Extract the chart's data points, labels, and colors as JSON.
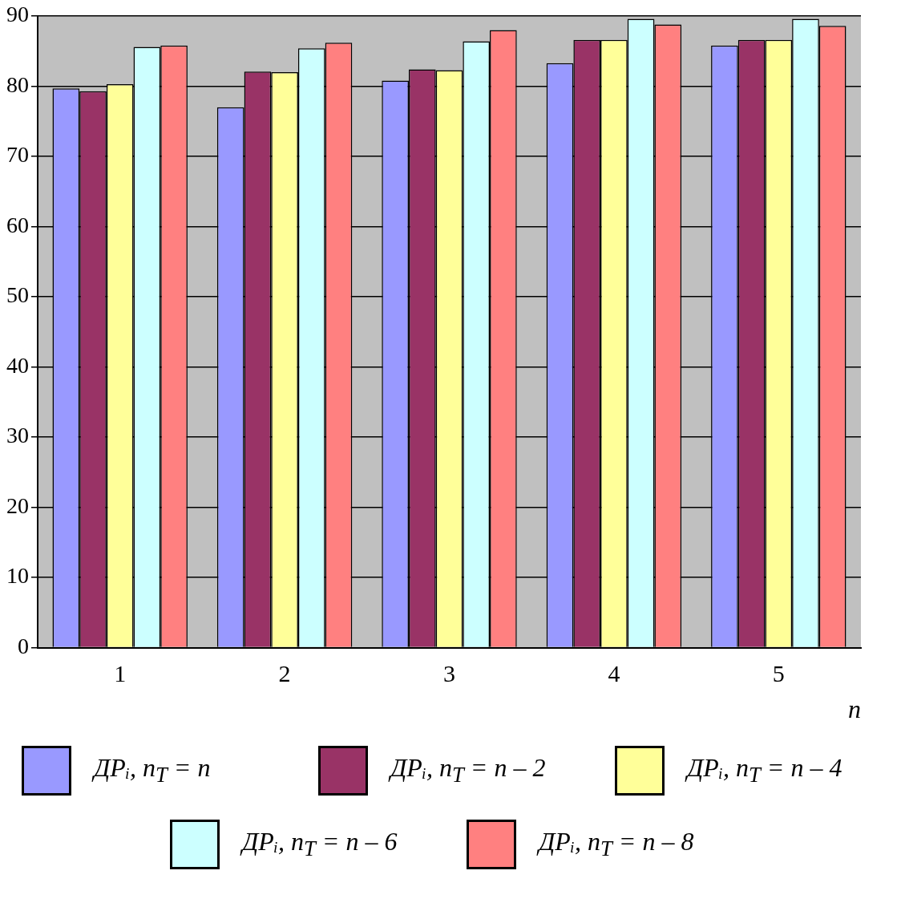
{
  "chart_data": {
    "type": "bar",
    "xlabel": "n",
    "categories": [
      "1",
      "2",
      "3",
      "4",
      "5"
    ],
    "series": [
      {
        "name": "ДPᵢ, n$_{T}$ = n",
        "color": "#9999ff",
        "values": [
          79.7,
          77.0,
          80.8,
          83.3,
          85.8
        ]
      },
      {
        "name": "ДPᵢ, n$_{T}$ = n – 2",
        "color": "#993366",
        "values": [
          79.3,
          82.1,
          82.4,
          86.6,
          86.6
        ]
      },
      {
        "name": "ДPᵢ, n$_{T}$ = n – 4",
        "color": "#ffff99",
        "values": [
          80.3,
          82.0,
          82.3,
          86.6,
          86.6
        ]
      },
      {
        "name": "ДPᵢ, n$_{T}$ = n – 6",
        "color": "#ccffff",
        "values": [
          85.6,
          85.4,
          86.4,
          89.6,
          89.6
        ]
      },
      {
        "name": "ДPᵢ, n$_{T}$ = n – 8",
        "color": "#ff8080",
        "values": [
          85.8,
          86.2,
          88.0,
          88.8,
          88.6
        ]
      }
    ],
    "ylim": [
      0,
      90
    ],
    "yticks": [
      0,
      10,
      20,
      30,
      40,
      50,
      60,
      70,
      80,
      90
    ],
    "grid": "y",
    "legend": "bottom"
  }
}
